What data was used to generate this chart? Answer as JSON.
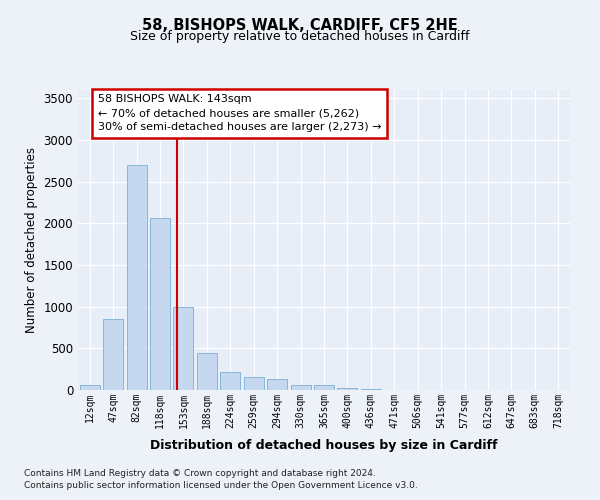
{
  "title1": "58, BISHOPS WALK, CARDIFF, CF5 2HE",
  "title2": "Size of property relative to detached houses in Cardiff",
  "xlabel": "Distribution of detached houses by size in Cardiff",
  "ylabel": "Number of detached properties",
  "categories": [
    "12sqm",
    "47sqm",
    "82sqm",
    "118sqm",
    "153sqm",
    "188sqm",
    "224sqm",
    "259sqm",
    "294sqm",
    "330sqm",
    "365sqm",
    "400sqm",
    "436sqm",
    "471sqm",
    "506sqm",
    "541sqm",
    "577sqm",
    "612sqm",
    "647sqm",
    "683sqm",
    "718sqm"
  ],
  "values": [
    60,
    850,
    2700,
    2060,
    1000,
    450,
    220,
    160,
    130,
    60,
    55,
    30,
    15,
    5,
    2,
    1,
    0,
    0,
    0,
    0,
    0
  ],
  "bar_color": "#c5d8f0",
  "bar_edge_color": "#7aafd4",
  "background_color": "#e8eef8",
  "grid_color": "#ffffff",
  "vline_color": "#cc0000",
  "annotation_text": "58 BISHOPS WALK: 143sqm\n← 70% of detached houses are smaller (5,262)\n30% of semi-detached houses are larger (2,273) →",
  "annotation_box_color": "#cc0000",
  "ylim": [
    0,
    3600
  ],
  "yticks": [
    0,
    500,
    1000,
    1500,
    2000,
    2500,
    3000,
    3500
  ],
  "footer1": "Contains HM Land Registry data © Crown copyright and database right 2024.",
  "footer2": "Contains public sector information licensed under the Open Government Licence v3.0."
}
